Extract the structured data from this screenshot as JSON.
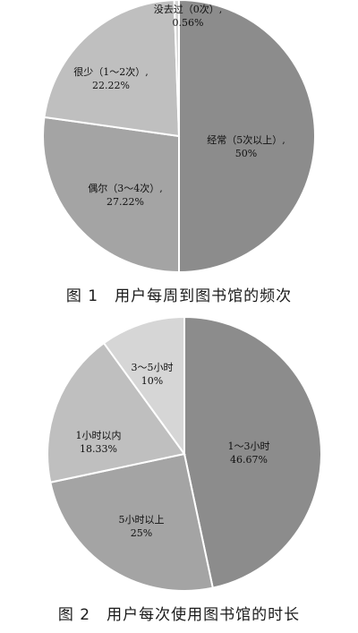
{
  "chart_data": [
    {
      "type": "pie",
      "title": "图 1　用户每周到图书馆的频次",
      "slices": [
        {
          "label": "经常（5次以上）,",
          "value": 50,
          "value_label": "50%",
          "color": "#8c8c8c"
        },
        {
          "label": "偶尔（3～4次）,",
          "value": 27.22,
          "value_label": "27.22%",
          "color": "#a4a4a4"
        },
        {
          "label": "很少（1～2次）,",
          "value": 22.22,
          "value_label": "22.22%",
          "color": "#bfbfbf"
        },
        {
          "label": "没去过（0次）,",
          "value": 0.56,
          "value_label": "0.56%",
          "color": "#d6d6d6"
        }
      ]
    },
    {
      "type": "pie",
      "title": "图 2　用户每次使用图书馆的时长",
      "slices": [
        {
          "label": "1～3小时",
          "value": 46.67,
          "value_label": "46.67%",
          "color": "#8c8c8c"
        },
        {
          "label": "5小时以上",
          "value": 25,
          "value_label": "25%",
          "color": "#a4a4a4"
        },
        {
          "label": "1小时以内",
          "value": 18.33,
          "value_label": "18.33%",
          "color": "#bfbfbf"
        },
        {
          "label": "3～5小时",
          "value": 10,
          "value_label": "10%",
          "color": "#d6d6d6"
        }
      ]
    }
  ]
}
